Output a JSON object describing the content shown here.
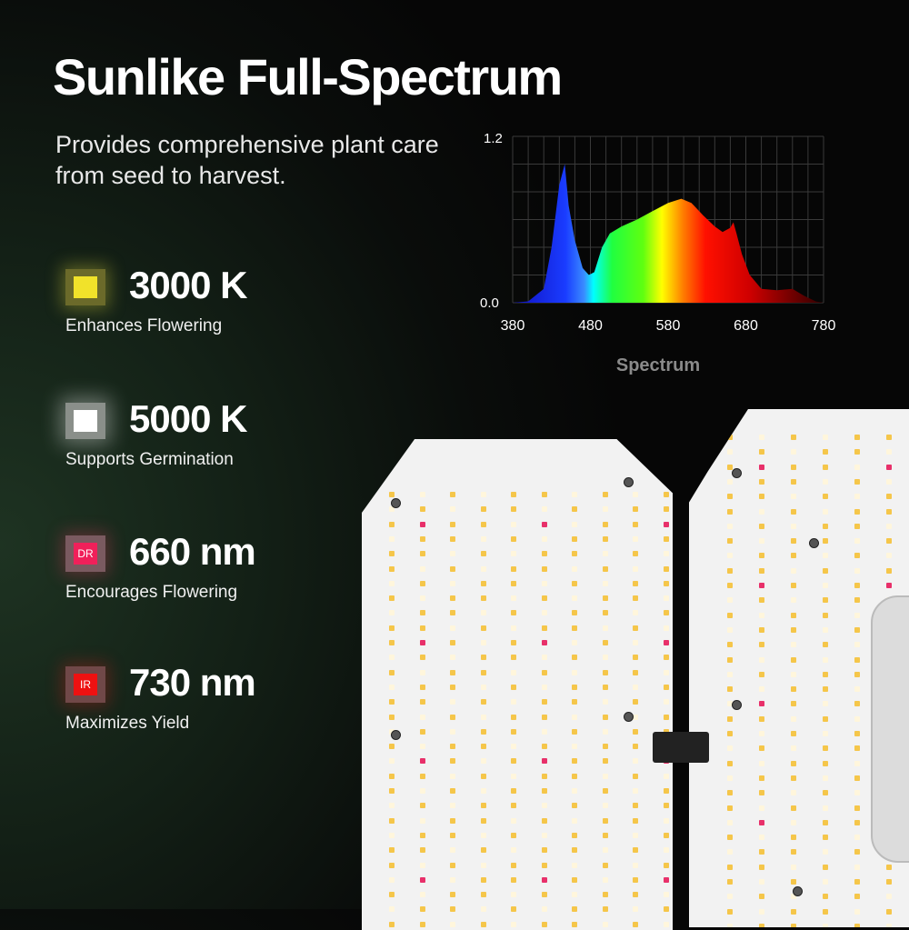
{
  "title": "Sunlike Full-Spectrum",
  "subtitle": "Provides comprehensive plant care from seed to harvest.",
  "features": [
    {
      "value": "3000 K",
      "desc": "Enhances Flowering",
      "swatch_color": "#f1e22a",
      "badge": ""
    },
    {
      "value": "5000 K",
      "desc": "Supports Germination",
      "swatch_color": "#ffffff",
      "badge": ""
    },
    {
      "value": "660 nm",
      "desc": "Encourages Flowering",
      "swatch_color": "#f0205a",
      "badge": "DR"
    },
    {
      "value": "730 nm",
      "desc": "Maximizes Yield",
      "swatch_color": "#ee1111",
      "badge": "IR"
    }
  ],
  "chart_data": {
    "type": "area",
    "xlabel": "Spectrum",
    "xlim": [
      380,
      780
    ],
    "ylim": [
      0,
      1.2
    ],
    "xticks": [
      "380",
      "480",
      "580",
      "680",
      "780"
    ],
    "yticks": [
      "0.0",
      "1.2"
    ],
    "grid": true,
    "x": [
      380,
      400,
      420,
      430,
      440,
      447,
      452,
      460,
      470,
      478,
      485,
      495,
      505,
      520,
      540,
      560,
      580,
      597,
      610,
      625,
      640,
      650,
      660,
      664,
      668,
      675,
      685,
      700,
      720,
      740,
      755,
      770,
      780
    ],
    "y": [
      0,
      0.01,
      0.1,
      0.4,
      0.85,
      1.0,
      0.7,
      0.45,
      0.25,
      0.2,
      0.22,
      0.4,
      0.5,
      0.55,
      0.6,
      0.66,
      0.72,
      0.75,
      0.72,
      0.63,
      0.55,
      0.51,
      0.54,
      0.58,
      0.5,
      0.35,
      0.2,
      0.1,
      0.09,
      0.1,
      0.05,
      0.01,
      0
    ]
  }
}
